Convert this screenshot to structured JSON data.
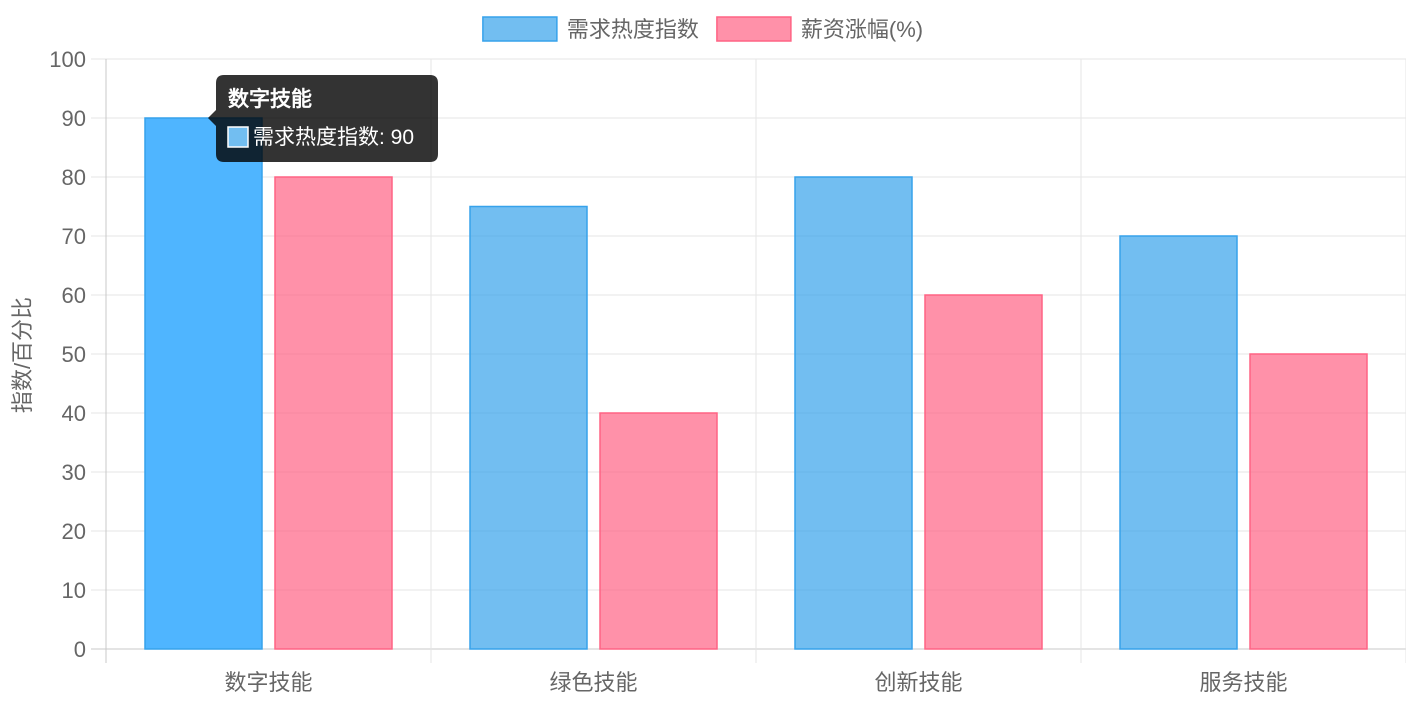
{
  "chart_data": {
    "type": "bar",
    "categories": [
      "数字技能",
      "绿色技能",
      "创新技能",
      "服务技能"
    ],
    "series": [
      {
        "name": "需求热度指数",
        "values": [
          90,
          75,
          80,
          70
        ],
        "color": "#36A2EB",
        "fill": "rgba(54,162,235,0.7)",
        "hover_fill": "#4FB5FF"
      },
      {
        "name": "薪资涨幅(%)",
        "values": [
          80,
          40,
          60,
          50
        ],
        "color": "#FF6384",
        "fill": "rgba(255,99,132,0.7)"
      }
    ],
    "ylabel": "指数/百分比",
    "xlabel": "",
    "ylim": [
      0,
      100
    ],
    "y_ticks": [
      "0",
      "10",
      "20",
      "30",
      "40",
      "50",
      "60",
      "70",
      "80",
      "90",
      "100"
    ],
    "grid": true,
    "legend_position": "top",
    "tooltip": {
      "title": "数字技能",
      "label": "需求热度指数: 90"
    }
  }
}
